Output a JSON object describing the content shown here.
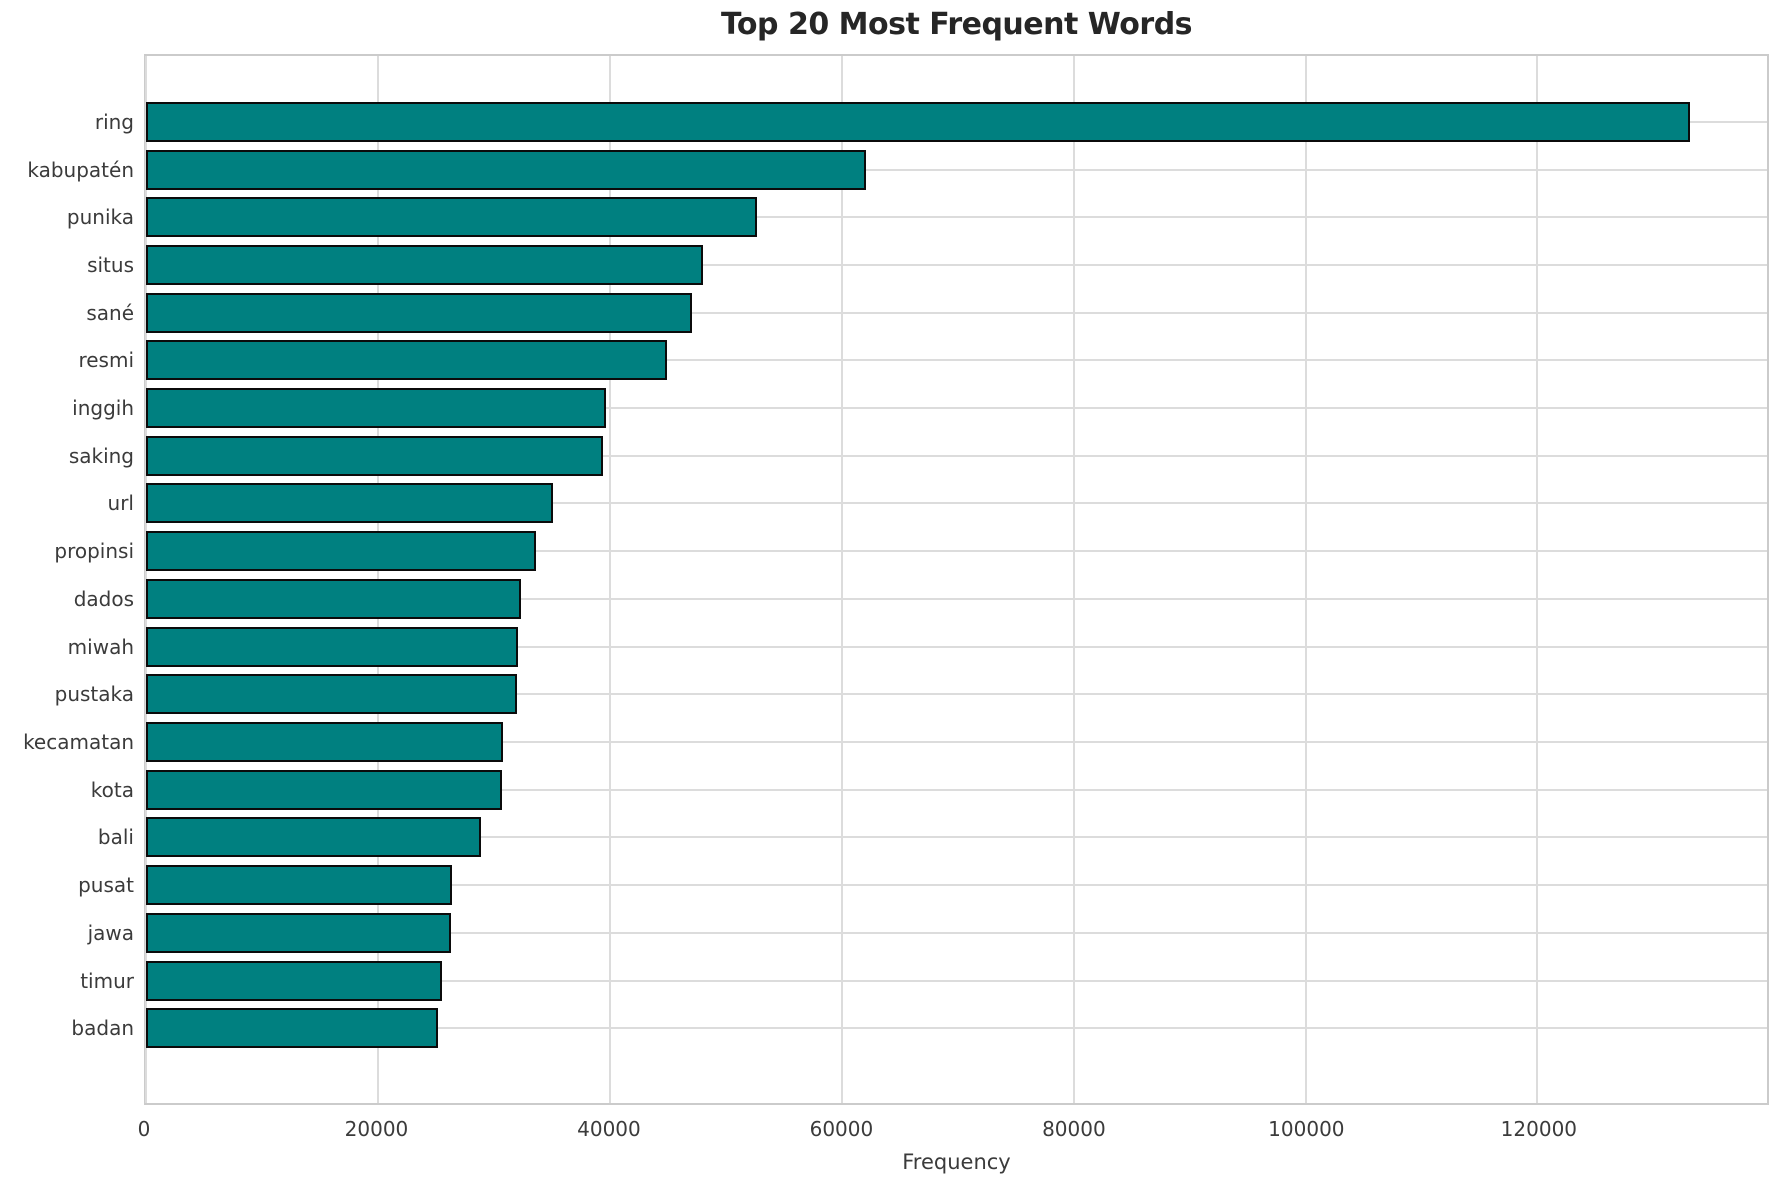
{
  "chart_data": {
    "type": "bar",
    "orientation": "horizontal",
    "title": "Top 20 Most Frequent Words",
    "xlabel": "Frequency",
    "ylabel": "",
    "categories": [
      "ring",
      "kabupatén",
      "punika",
      "situs",
      "sané",
      "resmi",
      "inggih",
      "saking",
      "url",
      "propinsi",
      "dados",
      "miwah",
      "pustaka",
      "kecamatan",
      "kota",
      "bali",
      "pusat",
      "jawa",
      "timur",
      "badan"
    ],
    "values": [
      133200,
      62100,
      52700,
      48000,
      47100,
      44900,
      39700,
      39400,
      35100,
      33600,
      32300,
      32100,
      32000,
      30800,
      30700,
      28900,
      26400,
      26300,
      25500,
      25200
    ],
    "xticks": [
      0,
      20000,
      40000,
      60000,
      80000,
      100000,
      120000
    ],
    "xlim": [
      0,
      139800
    ],
    "grid": "both",
    "legend": "none",
    "colors": {
      "bar_fill": "#008080",
      "bar_edge": "#0b0b0b",
      "gridline": "#dcdcdc",
      "spine": "#cbcbcb",
      "title_text": "#262626",
      "tick_text": "#3b3b3b",
      "background": "#ffffff"
    }
  }
}
